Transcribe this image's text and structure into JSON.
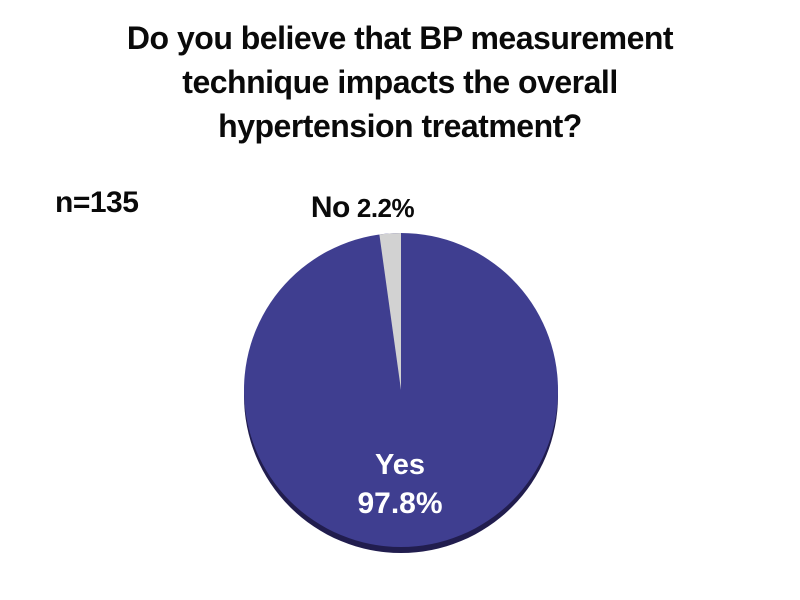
{
  "page": {
    "background": "#ffffff"
  },
  "header": {
    "title_lines": [
      "Do you believe that BP measurement",
      "technique impacts the overall",
      "hypertension treatment?"
    ]
  },
  "sample": {
    "label": "n=135"
  },
  "chart_data": {
    "type": "pie",
    "title": "Do you believe that BP measurement technique impacts the overall hypertension treatment?",
    "sample_size": 135,
    "sample_size_label": "n=135",
    "categories": [
      "Yes",
      "No"
    ],
    "values": [
      97.8,
      2.2
    ],
    "slices": [
      {
        "label": "Yes",
        "value": 97.8,
        "display_value": "97.8%",
        "color": "#3f3e90",
        "text_color": "#ffffff",
        "label_position": "inside-bottom"
      },
      {
        "label": "No",
        "value": 2.2,
        "display_value": "2.2%",
        "color": "#d2d2d2",
        "text_color": "#0a0a0a",
        "label_position": "outside-top"
      }
    ],
    "start_angle_deg": 0,
    "direction": "no-slice-counterclockwise-from-top",
    "shadow_color": "#211d4e",
    "legend_position": "none",
    "grid": false
  }
}
